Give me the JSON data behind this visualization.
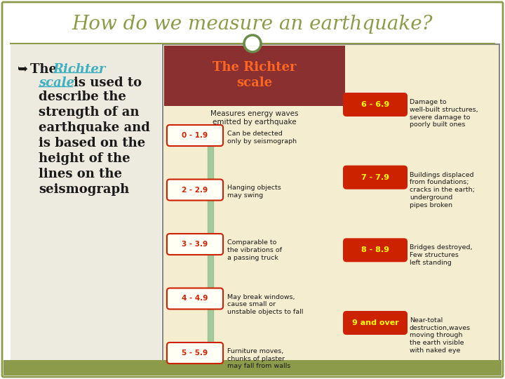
{
  "title": "How do we measure an earthquake?",
  "title_color": "#8B9B4A",
  "slide_bg": "#FFFFFF",
  "left_panel_bg": "#EDEAE0",
  "left_text_color": "#1A1A1A",
  "link_color": "#40B0C0",
  "richter_title": "The Richter\nscale",
  "richter_subtitle": "Measures energy waves\nemitted by earthquake",
  "infographic_bg": "#F5EDD0",
  "border_color": "#8B9B4A",
  "header_bar_color": "#8B3030",
  "low_ranges": [
    {
      "range": "0 - 1.9",
      "desc": "Can be detected\nonly by seismograph"
    },
    {
      "range": "2 - 2.9",
      "desc": "Hanging objects\nmay swing"
    },
    {
      "range": "3 - 3.9",
      "desc": "Comparable to\nthe vibrations of\na passing truck"
    },
    {
      "range": "4 - 4.9",
      "desc": "May break windows,\ncause small or\nunstable objects to fall"
    },
    {
      "range": "5 - 5.9",
      "desc": "Furniture moves,\nchunks of plaster\nmay fall from walls"
    }
  ],
  "high_ranges": [
    {
      "range": "6 - 6.9",
      "desc": "Damage to\nwell-built structures,\nsevere damage to\npoorly built ones"
    },
    {
      "range": "7 - 7.9",
      "desc": "Buildings displaced\nfrom foundations;\ncracks in the earth;\nunderground\npipes broken"
    },
    {
      "range": "8 - 8.9",
      "desc": "Bridges destroyed,\nFew structures\nleft standing"
    },
    {
      "range": "9 and over",
      "desc": "Near-total\ndestruction,waves\nmoving through\nthe earth visible\nwith naked eye"
    }
  ],
  "range_oval_color": "#CC2200",
  "range_text_color": "#FFFF00",
  "desc_text_color": "#1A1A1A",
  "green_stripe_color": "#90C090",
  "connector_circle_color": "#6B8B4A"
}
